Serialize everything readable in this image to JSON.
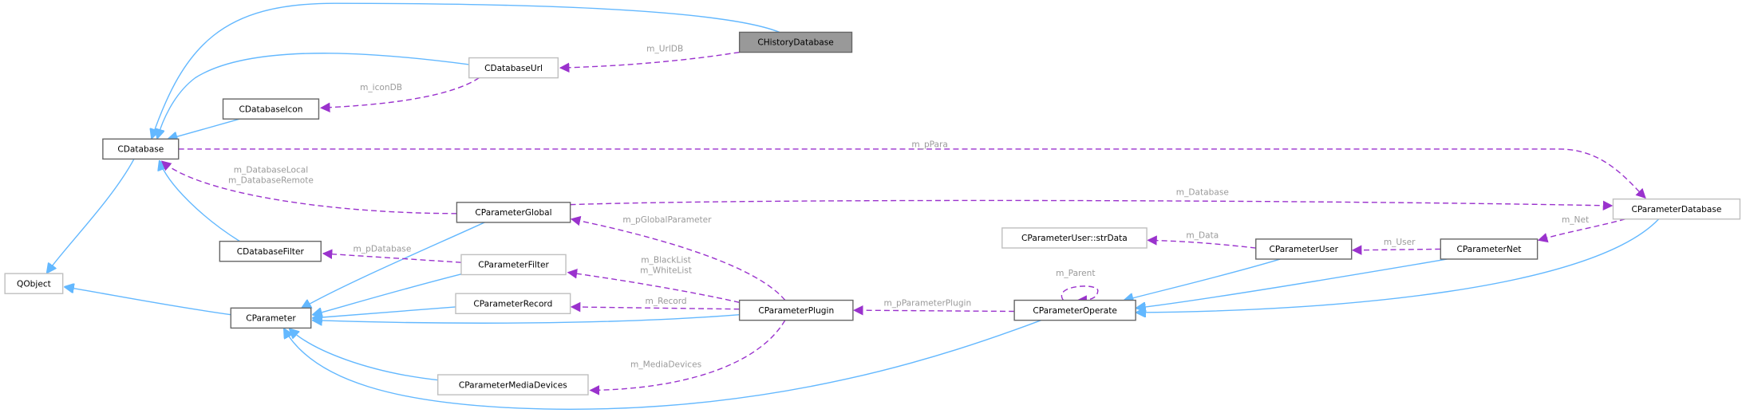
{
  "nodes": [
    "CHistoryDatabase",
    "CDatabaseUrl",
    "CDatabaseIcon",
    "CDatabase",
    "QObject",
    "CParameter",
    "CDatabaseFilter",
    "CParameterGlobal",
    "CParameterFilter",
    "CParameterRecord",
    "CParameterMediaDevices",
    "CParameterPlugin",
    "CParameterOperate",
    "CParameterUser::strData",
    "CParameterUser",
    "CParameterNet",
    "CParameterDatabase"
  ],
  "edge_labels": [
    [
      "m_UrlDB"
    ],
    [
      "m_iconDB"
    ],
    [
      "m_pPara"
    ],
    [
      "m_DatabaseLocal",
      "m_DatabaseRemote"
    ],
    [
      "m_Database"
    ],
    [
      "m_pDatabase"
    ],
    [
      "m_pGlobalParameter"
    ],
    [
      "m_BlackList",
      "m_WhiteList"
    ],
    [
      "m_Record"
    ],
    [
      "m_MediaDevices"
    ],
    [
      "m_pParameterPlugin"
    ],
    [
      "m_Parent"
    ],
    [
      "m_Data"
    ],
    [
      "m_User"
    ],
    [
      "m_Net"
    ]
  ]
}
